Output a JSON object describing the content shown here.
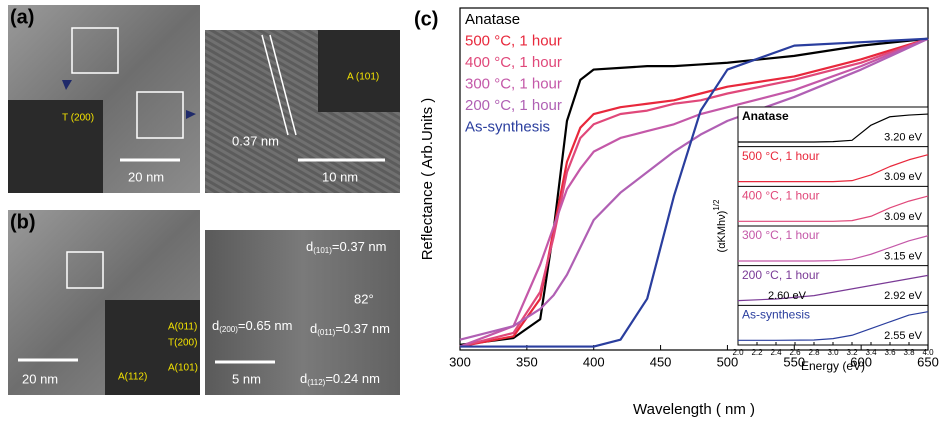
{
  "panels": {
    "a": {
      "label": "(a)",
      "texts": [
        "A (101)",
        "T (200)",
        "0.37 nm",
        "20 nm",
        "10 nm"
      ]
    },
    "b": {
      "label": "(b)",
      "texts": [
        "A(011)",
        "T(200)",
        "A(112)",
        "A(101)",
        "20 nm",
        "5 nm",
        "82°"
      ],
      "spacings": [
        {
          "base": "d",
          "sub": "(101)",
          "rest": "=0.37 nm"
        },
        {
          "base": "d",
          "sub": "(200)",
          "rest": "=0.65 nm"
        },
        {
          "base": "d",
          "sub": "(011)",
          "rest": "=0.37 nm"
        },
        {
          "base": "d",
          "sub": "(112)",
          "rest": "=0.24 nm"
        }
      ]
    },
    "c": {
      "label": "(c)"
    }
  },
  "chart_data": [
    {
      "type": "line",
      "xlabel": "Wavelength ( nm )",
      "ylabel": "Reflectance ( Arb.Units )",
      "x": [
        300,
        340,
        360,
        370,
        380,
        390,
        400,
        420,
        440,
        460,
        480,
        500,
        550,
        600,
        650
      ],
      "xlim": [
        300,
        650
      ],
      "xticks": [
        300,
        350,
        400,
        450,
        500,
        550,
        600,
        650
      ],
      "ylim": [
        0,
        1
      ],
      "legend": "upper left",
      "series": [
        {
          "name": "Anatase",
          "color": "#000000",
          "values": [
            0.015,
            0.035,
            0.09,
            0.35,
            0.67,
            0.79,
            0.82,
            0.825,
            0.83,
            0.83,
            0.835,
            0.84,
            0.86,
            0.89,
            0.91
          ]
        },
        {
          "name": "500 °C, 1 hour",
          "color": "#e8283c",
          "values": [
            0.01,
            0.04,
            0.15,
            0.35,
            0.55,
            0.65,
            0.69,
            0.71,
            0.72,
            0.73,
            0.75,
            0.77,
            0.8,
            0.85,
            0.91
          ]
        },
        {
          "name": "400 °C, 1 hour",
          "color": "#e0487a",
          "values": [
            0.01,
            0.05,
            0.17,
            0.33,
            0.52,
            0.62,
            0.66,
            0.69,
            0.7,
            0.72,
            0.73,
            0.75,
            0.79,
            0.84,
            0.91
          ]
        },
        {
          "name": "300 °C, 1 hour",
          "color": "#c458a8",
          "values": [
            0.01,
            0.07,
            0.25,
            0.36,
            0.47,
            0.53,
            0.58,
            0.62,
            0.64,
            0.66,
            0.69,
            0.71,
            0.76,
            0.83,
            0.91
          ]
        },
        {
          "name": "200 °C, 1 hour",
          "color": "#b060b4",
          "values": [
            0.03,
            0.07,
            0.12,
            0.16,
            0.22,
            0.3,
            0.38,
            0.46,
            0.52,
            0.58,
            0.63,
            0.67,
            0.74,
            0.82,
            0.91
          ]
        },
        {
          "name": "As-synthesis",
          "color": "#2a3e9e",
          "values": [
            0.01,
            0.01,
            0.01,
            0.01,
            0.01,
            0.01,
            0.01,
            0.03,
            0.15,
            0.45,
            0.7,
            0.82,
            0.89,
            0.9,
            0.91
          ]
        }
      ]
    },
    {
      "type": "panels",
      "xlabel": "Energy (eV)",
      "ylabel": "(αKMhν)",
      "ylabel_sup": "1/2",
      "x": [
        2.0,
        2.4,
        2.8,
        3.0,
        3.2,
        3.4,
        3.6,
        3.8,
        4.0
      ],
      "xlim": [
        2,
        4
      ],
      "ylim": [
        0,
        1
      ],
      "xticks": [
        {
          "value": 2,
          "label": "2.0"
        },
        {
          "value": 2.2,
          "label": "2.2"
        },
        {
          "value": 2.4,
          "label": "2.4"
        },
        {
          "value": 2.6,
          "label": "2.6"
        },
        {
          "value": 2.8,
          "label": "2.8"
        },
        {
          "value": 3,
          "label": "3.0"
        },
        {
          "value": 3.2,
          "label": "3.2"
        },
        {
          "value": 3.4,
          "label": "3.4"
        },
        {
          "value": 3.6,
          "label": "3.6"
        },
        {
          "value": 3.8,
          "label": "3.8"
        },
        {
          "value": 4,
          "label": "4.0"
        }
      ],
      "series": [
        {
          "name": "Anatase",
          "color": "#000000",
          "values": [
            0.05,
            0.05,
            0.05,
            0.06,
            0.1,
            0.55,
            0.8,
            0.85,
            0.88
          ],
          "annotations": [
            "3.20 eV"
          ]
        },
        {
          "name": "500 °C, 1 hour",
          "color": "#e8283c",
          "values": [
            0.05,
            0.05,
            0.05,
            0.05,
            0.08,
            0.25,
            0.5,
            0.7,
            0.85
          ],
          "annotations": [
            "3.09 eV"
          ]
        },
        {
          "name": "400 °C, 1 hour",
          "color": "#e0487a",
          "values": [
            0.05,
            0.05,
            0.05,
            0.05,
            0.07,
            0.2,
            0.45,
            0.65,
            0.8
          ],
          "annotations": [
            "3.09 eV"
          ]
        },
        {
          "name": "300 °C, 1 hour",
          "color": "#c458a8",
          "values": [
            0.05,
            0.05,
            0.05,
            0.06,
            0.1,
            0.25,
            0.45,
            0.65,
            0.8
          ],
          "annotations": [
            "3.15 eV"
          ]
        },
        {
          "name": "200 °C, 1 hour",
          "color": "#7a3a96",
          "values": [
            0.05,
            0.1,
            0.2,
            0.3,
            0.4,
            0.5,
            0.6,
            0.7,
            0.8
          ],
          "annotations": [
            "2.60 eV",
            "2.92 eV"
          ]
        },
        {
          "name": "As-synthesis",
          "color": "#2a3e9e",
          "values": [
            0.05,
            0.05,
            0.06,
            0.1,
            0.2,
            0.4,
            0.6,
            0.8,
            0.9
          ],
          "annotations": [
            "2.55 eV"
          ]
        }
      ]
    }
  ]
}
